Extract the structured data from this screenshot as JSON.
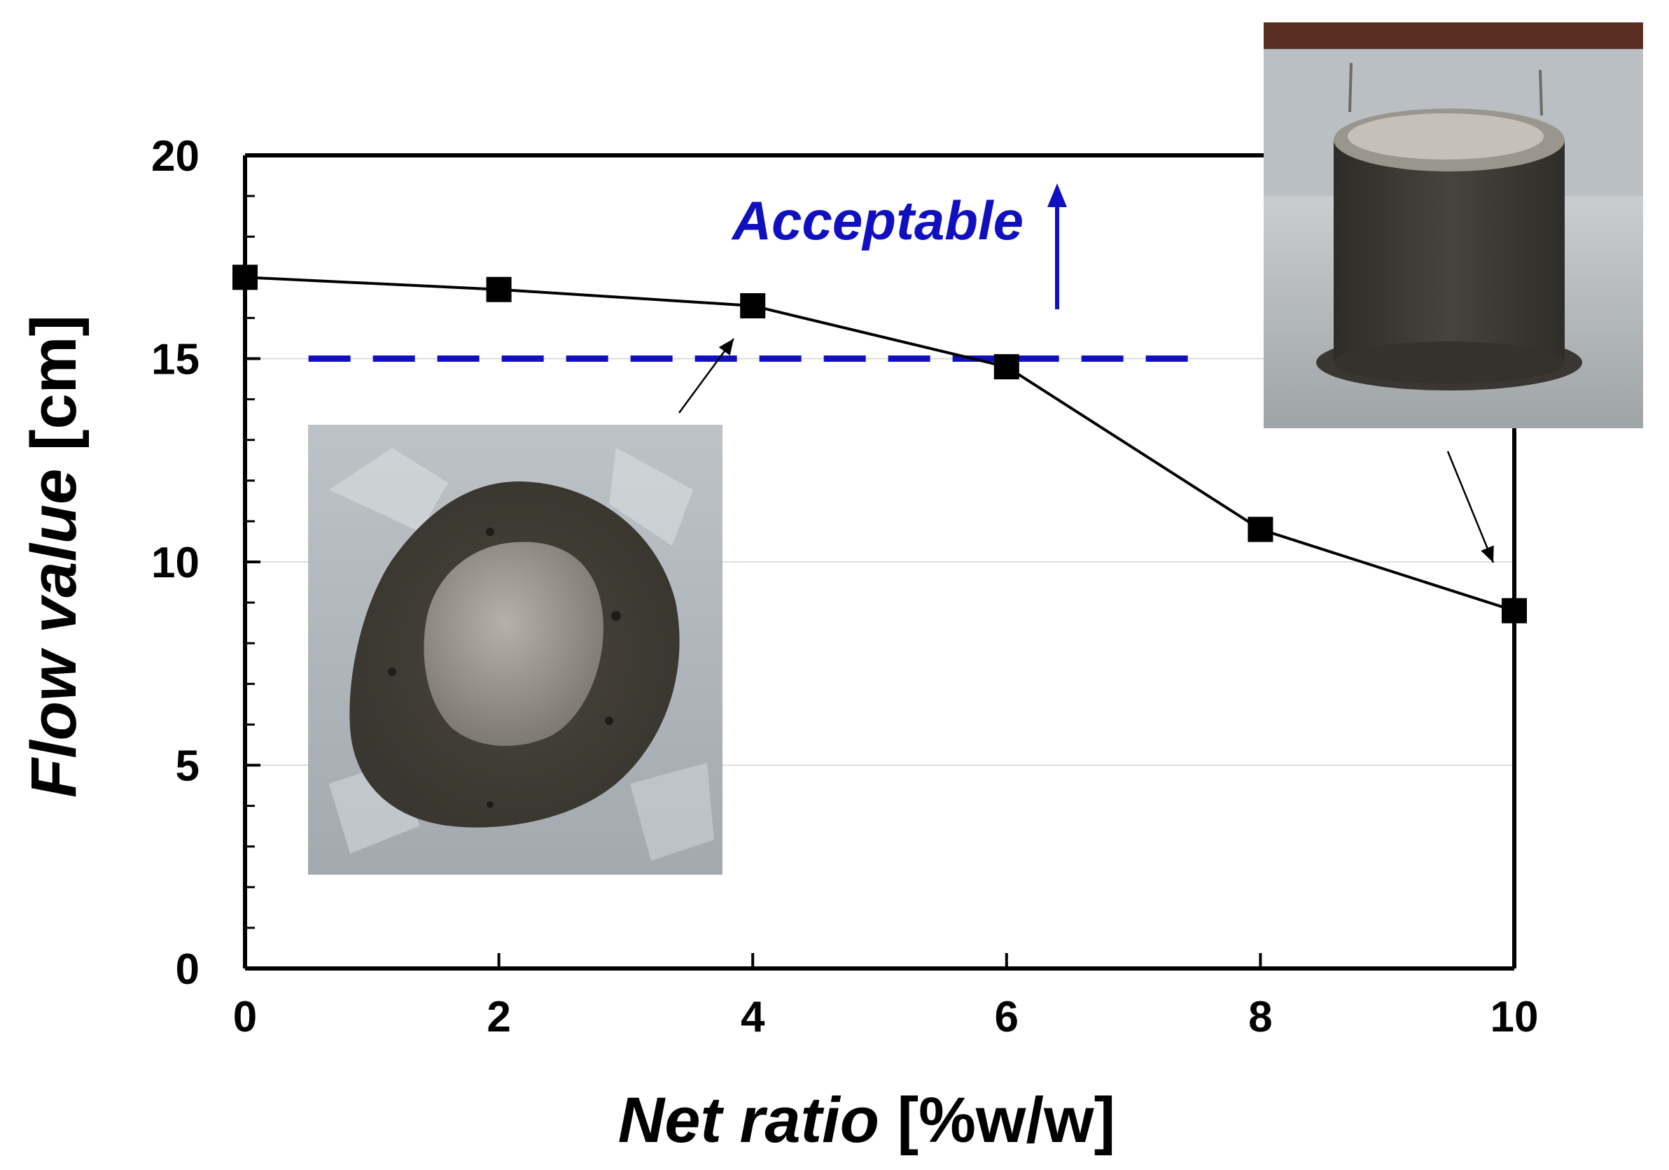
{
  "chart_data": {
    "type": "line",
    "x": [
      0,
      2,
      4,
      6,
      8,
      10
    ],
    "series": [
      {
        "values": [
          17.0,
          16.7,
          16.3,
          14.8,
          10.8,
          8.8
        ],
        "color": "#000000",
        "marker": "square"
      }
    ],
    "xlabel_italic": "Net ratio",
    "xlabel_unit": "[%w/w]",
    "ylabel_italic": "Flow value",
    "ylabel_unit": "[cm]",
    "xlim": [
      0,
      10
    ],
    "ylim": [
      0,
      20
    ],
    "xticks": [
      0,
      2,
      4,
      6,
      8,
      10
    ],
    "yticks": [
      0,
      5,
      10,
      15,
      20
    ],
    "grid": "horizontal light lines",
    "reference_line": {
      "y": 15,
      "x_range": [
        0.5,
        7.5
      ],
      "style": "dashed",
      "color": "#1010c0"
    },
    "annotation": {
      "text": "Acceptable",
      "color": "#1010c0",
      "arrow": "up"
    },
    "insets": [
      {
        "name": "flow-spread-photo",
        "points_to_x": 4
      },
      {
        "name": "cylinder-slump-photo",
        "points_to_x": 10
      }
    ]
  }
}
